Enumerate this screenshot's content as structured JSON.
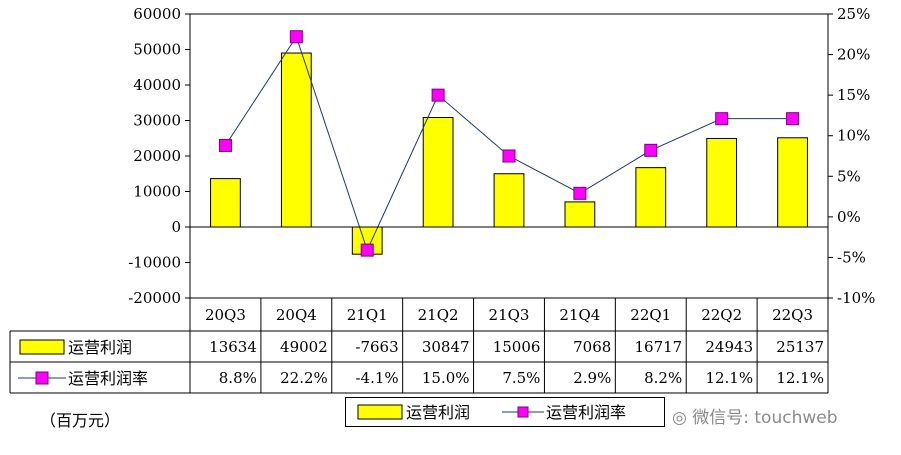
{
  "chart_data": {
    "type": "bar",
    "categories": [
      "20Q3",
      "20Q4",
      "21Q1",
      "21Q2",
      "21Q3",
      "21Q4",
      "22Q1",
      "22Q2",
      "22Q3"
    ],
    "series": [
      {
        "name": "运营利润",
        "type": "bar",
        "axis": "left",
        "color": "#ffff00",
        "values": [
          13634,
          49002,
          -7663,
          30847,
          15006,
          7068,
          16717,
          24943,
          25137
        ],
        "labels": [
          "13634",
          "49002",
          "-7663",
          "30847",
          "15006",
          "7068",
          "16717",
          "24943",
          "25137"
        ]
      },
      {
        "name": "运营利润率",
        "type": "line",
        "axis": "right",
        "color": "#ff00ff",
        "values": [
          8.8,
          22.2,
          -4.1,
          15.0,
          7.5,
          2.9,
          8.2,
          12.1,
          12.1
        ],
        "labels": [
          "8.8%",
          "22.2%",
          "-4.1%",
          "15.0%",
          "7.5%",
          "2.9%",
          "8.2%",
          "12.1%",
          "12.1%"
        ]
      }
    ],
    "ylim": [
      -20000,
      60000
    ],
    "yticks": [
      "60000",
      "50000",
      "40000",
      "30000",
      "20000",
      "10000",
      "0",
      "-10000",
      "-20000"
    ],
    "y2lim": [
      -10,
      25
    ],
    "y2ticks": [
      "25%",
      "20%",
      "15%",
      "10%",
      "5%",
      "0%",
      "-5%",
      "-10%"
    ],
    "legend_position": "bottom",
    "data_table": true,
    "grid": false
  },
  "unit_label": "（百万元）",
  "watermark": "微信号: touchweb",
  "watermark_icon": "wechat-icon"
}
